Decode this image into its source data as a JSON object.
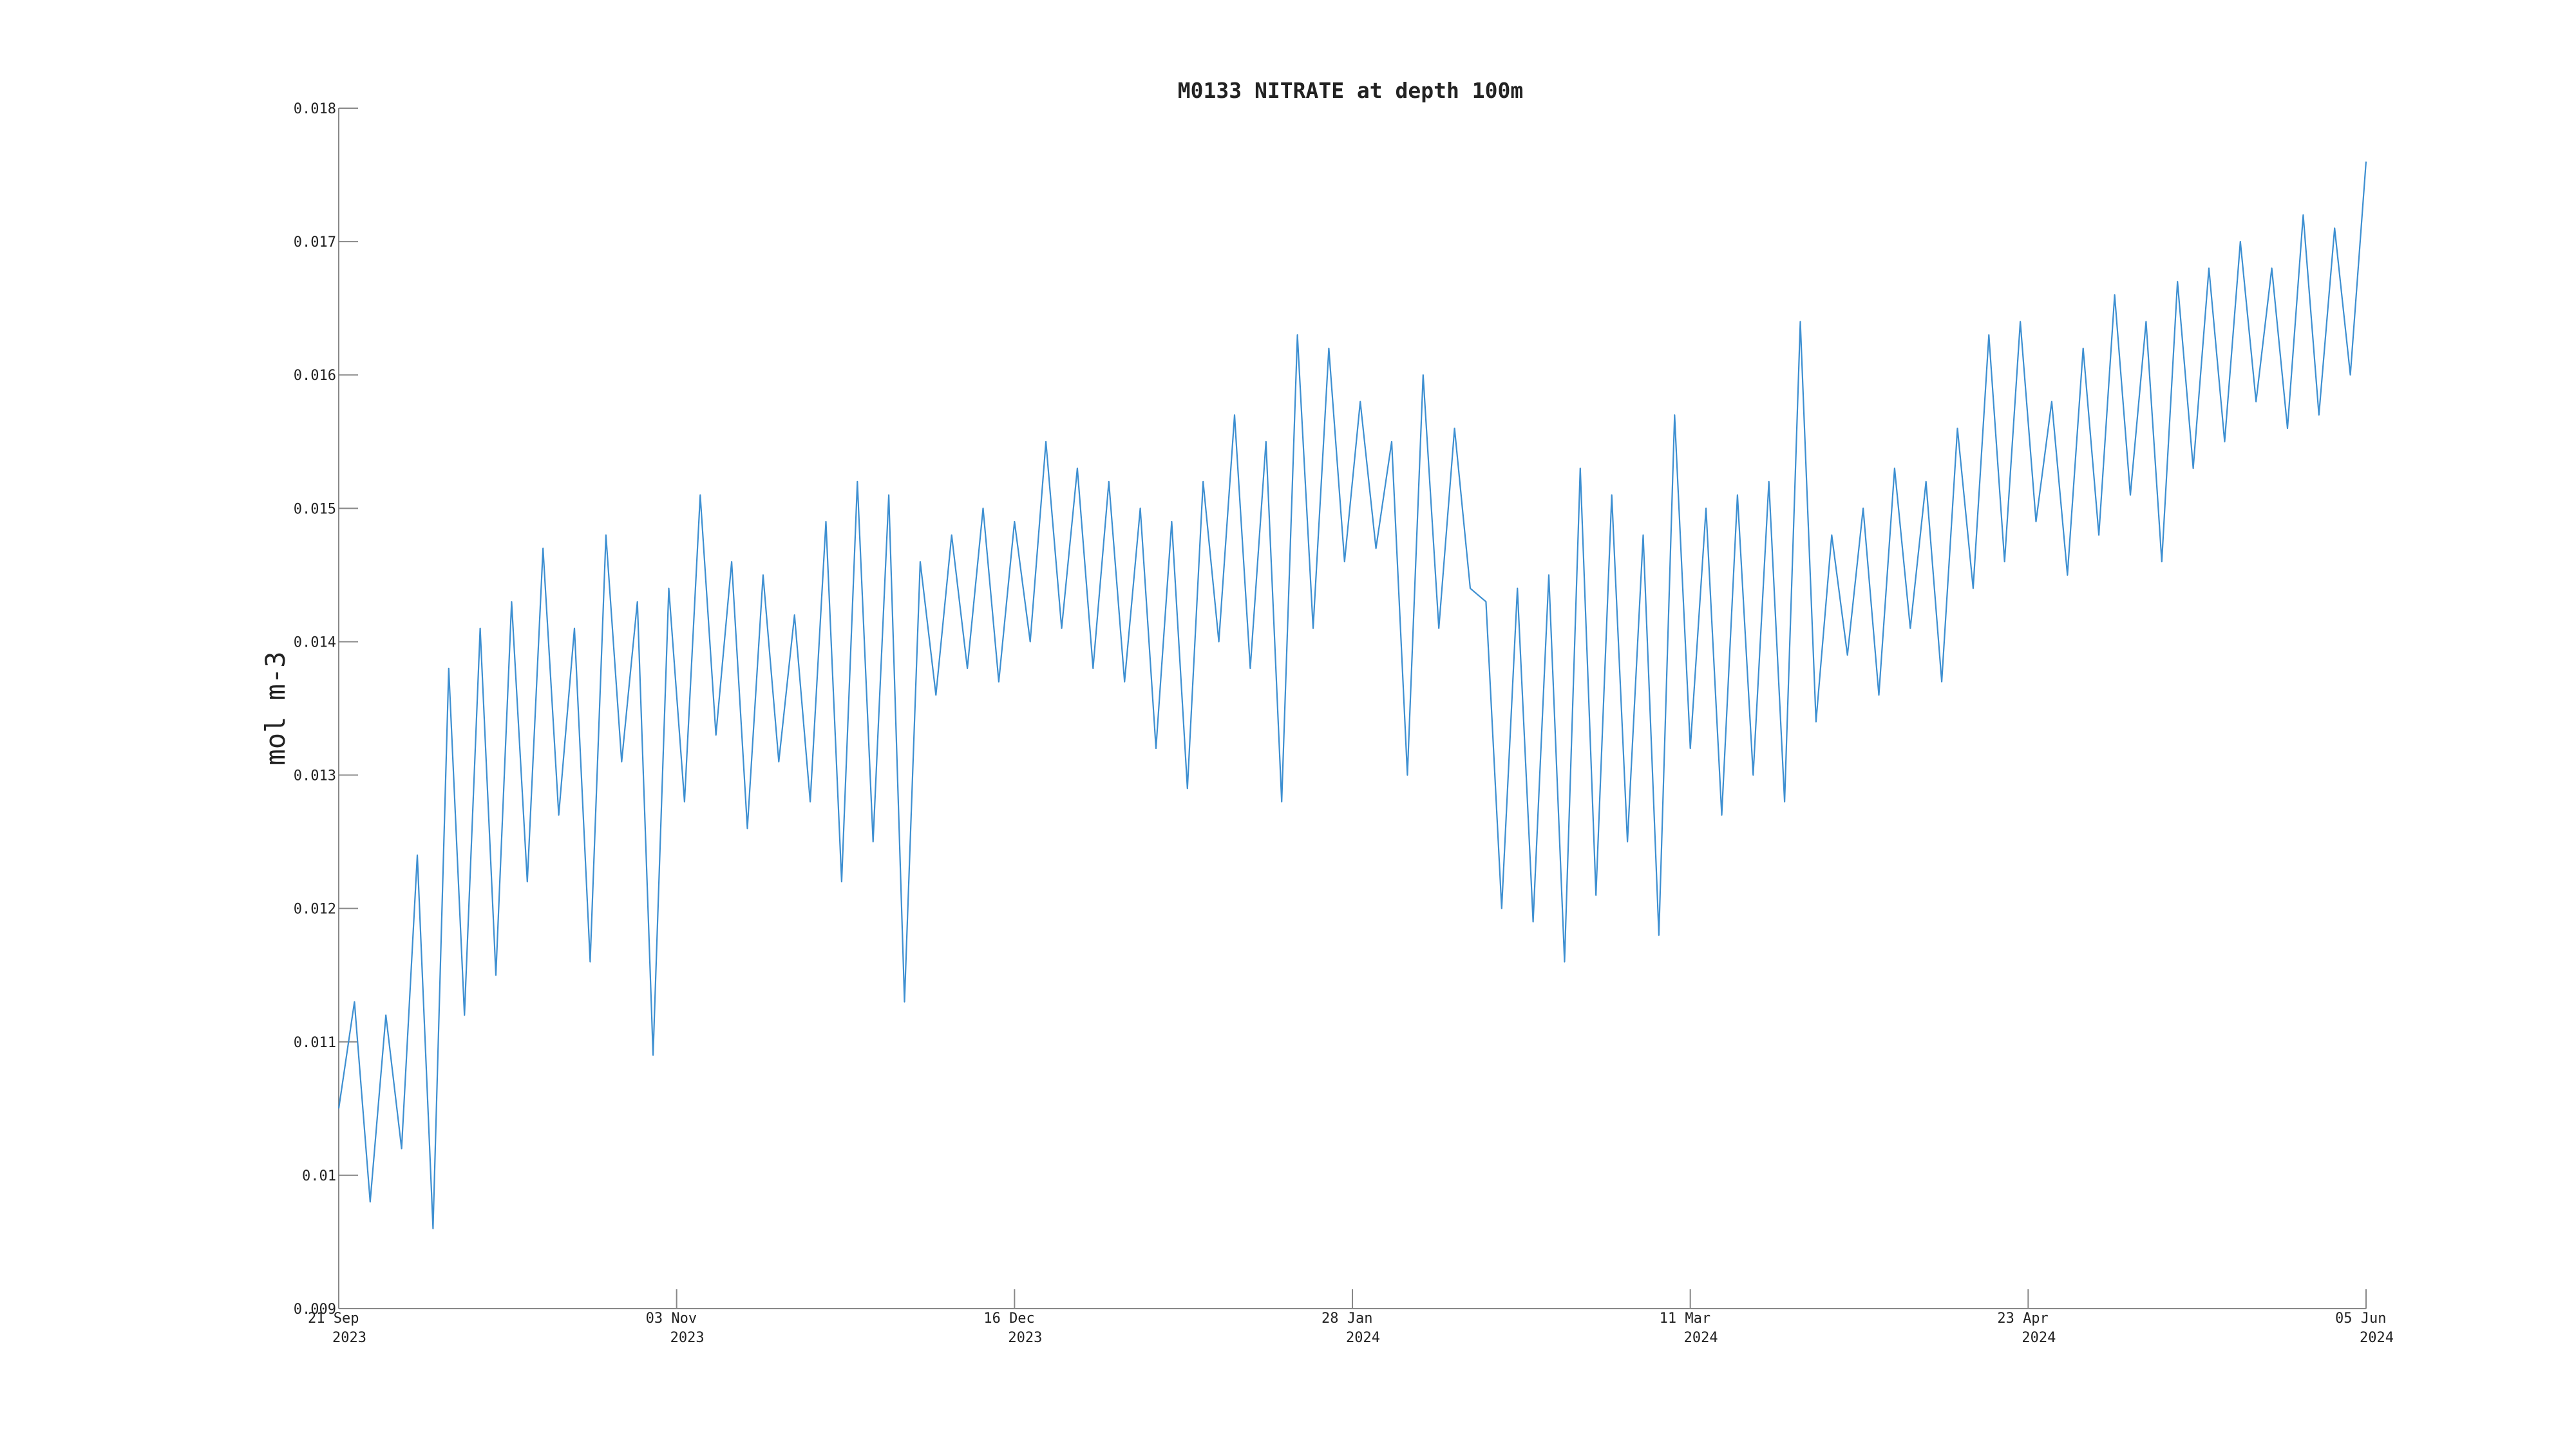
{
  "chart_data": {
    "type": "line",
    "title": "M0133 NITRATE at depth 100m",
    "y_label": "mol m-3",
    "x": [
      "2023-09-21",
      "2023-09-23",
      "2023-09-25",
      "2023-09-27",
      "2023-09-29",
      "2023-10-01",
      "2023-10-03",
      "2023-10-05",
      "2023-10-07",
      "2023-10-09",
      "2023-10-11",
      "2023-10-13",
      "2023-10-15",
      "2023-10-17",
      "2023-10-19",
      "2023-10-21",
      "2023-10-23",
      "2023-10-25",
      "2023-10-27",
      "2023-10-29",
      "2023-10-31",
      "2023-11-02",
      "2023-11-04",
      "2023-11-06",
      "2023-11-08",
      "2023-11-10",
      "2023-11-12",
      "2023-11-14",
      "2023-11-16",
      "2023-11-18",
      "2023-11-20",
      "2023-11-22",
      "2023-11-24",
      "2023-11-26",
      "2023-11-28",
      "2023-11-30",
      "2023-12-02",
      "2023-12-04",
      "2023-12-06",
      "2023-12-08",
      "2023-12-10",
      "2023-12-12",
      "2023-12-14",
      "2023-12-16",
      "2023-12-18",
      "2023-12-20",
      "2023-12-22",
      "2023-12-24",
      "2023-12-26",
      "2023-12-28",
      "2023-12-30",
      "2024-01-01",
      "2024-01-03",
      "2024-01-05",
      "2024-01-07",
      "2024-01-09",
      "2024-01-11",
      "2024-01-13",
      "2024-01-15",
      "2024-01-17",
      "2024-01-19",
      "2024-01-21",
      "2024-01-23",
      "2024-01-25",
      "2024-01-27",
      "2024-01-29",
      "2024-01-31",
      "2024-02-02",
      "2024-02-04",
      "2024-02-06",
      "2024-02-08",
      "2024-02-10",
      "2024-02-12",
      "2024-02-14",
      "2024-02-16",
      "2024-02-18",
      "2024-02-20",
      "2024-02-22",
      "2024-02-24",
      "2024-02-26",
      "2024-02-28",
      "2024-03-01",
      "2024-03-03",
      "2024-03-05",
      "2024-03-07",
      "2024-03-09",
      "2024-03-11",
      "2024-03-13",
      "2024-03-15",
      "2024-03-17",
      "2024-03-19",
      "2024-03-21",
      "2024-03-23",
      "2024-03-25",
      "2024-03-27",
      "2024-03-29",
      "2024-03-31",
      "2024-04-02",
      "2024-04-04",
      "2024-04-06",
      "2024-04-08",
      "2024-04-10",
      "2024-04-12",
      "2024-04-14",
      "2024-04-16",
      "2024-04-18",
      "2024-04-20",
      "2024-04-22",
      "2024-04-24",
      "2024-04-26",
      "2024-04-28",
      "2024-04-30",
      "2024-05-02",
      "2024-05-04",
      "2024-05-06",
      "2024-05-08",
      "2024-05-10",
      "2024-05-12",
      "2024-05-14",
      "2024-05-16",
      "2024-05-18",
      "2024-05-20",
      "2024-05-22",
      "2024-05-24",
      "2024-05-26",
      "2024-05-28",
      "2024-05-30",
      "2024-06-01",
      "2024-06-03",
      "2024-06-05"
    ],
    "series": [
      {
        "color": "#3d8fd1",
        "values": [
          0.0105,
          0.0113,
          0.0098,
          0.0112,
          0.0102,
          0.0124,
          0.0096,
          0.0138,
          0.0112,
          0.0141,
          0.0115,
          0.0143,
          0.0122,
          0.0147,
          0.0127,
          0.0141,
          0.0116,
          0.0148,
          0.0131,
          0.0143,
          0.0109,
          0.0144,
          0.0128,
          0.0151,
          0.0133,
          0.0146,
          0.0126,
          0.0145,
          0.0131,
          0.0142,
          0.0128,
          0.0149,
          0.0122,
          0.0152,
          0.0125,
          0.0151,
          0.0113,
          0.0146,
          0.0136,
          0.0148,
          0.0138,
          0.015,
          0.0137,
          0.0149,
          0.014,
          0.0155,
          0.0141,
          0.0153,
          0.0138,
          0.0152,
          0.0137,
          0.015,
          0.0132,
          0.0149,
          0.0129,
          0.0152,
          0.014,
          0.0157,
          0.0138,
          0.0155,
          0.0128,
          0.0163,
          0.0141,
          0.0162,
          0.0146,
          0.0158,
          0.0147,
          0.0155,
          0.013,
          0.016,
          0.0141,
          0.0156,
          0.0144,
          0.0143,
          0.012,
          0.0144,
          0.0119,
          0.0145,
          0.0116,
          0.0153,
          0.0121,
          0.0151,
          0.0125,
          0.0148,
          0.0118,
          0.0157,
          0.0132,
          0.015,
          0.0127,
          0.0151,
          0.013,
          0.0152,
          0.0128,
          0.0164,
          0.0134,
          0.0148,
          0.0139,
          0.015,
          0.0136,
          0.0153,
          0.0141,
          0.0152,
          0.0137,
          0.0156,
          0.0144,
          0.0163,
          0.0146,
          0.0164,
          0.0149,
          0.0158,
          0.0145,
          0.0162,
          0.0148,
          0.0166,
          0.0151,
          0.0164,
          0.0146,
          0.0167,
          0.0153,
          0.0168,
          0.0155,
          0.017,
          0.0158,
          0.0168,
          0.0156,
          0.0172,
          0.0157,
          0.0171,
          0.016,
          0.0176
        ]
      }
    ],
    "xlim": [
      "2023-09-21",
      "2024-06-05"
    ],
    "xticks": [
      {
        "value": "2023-09-21",
        "label": "21 Sep 2023"
      },
      {
        "value": "2023-11-03",
        "label": "03 Nov 2023"
      },
      {
        "value": "2023-12-16",
        "label": "16 Dec 2023"
      },
      {
        "value": "2024-01-28",
        "label": "28 Jan 2024"
      },
      {
        "value": "2024-03-11",
        "label": "11 Mar 2024"
      },
      {
        "value": "2024-04-23",
        "label": "23 Apr 2024"
      },
      {
        "value": "2024-06-05",
        "label": "05 Jun 2024"
      }
    ],
    "ylim": [
      0.009,
      0.018
    ],
    "yticks": [
      0.009,
      0.01,
      0.011,
      0.012,
      0.013,
      0.014,
      0.015,
      0.016,
      0.017,
      0.018
    ]
  }
}
